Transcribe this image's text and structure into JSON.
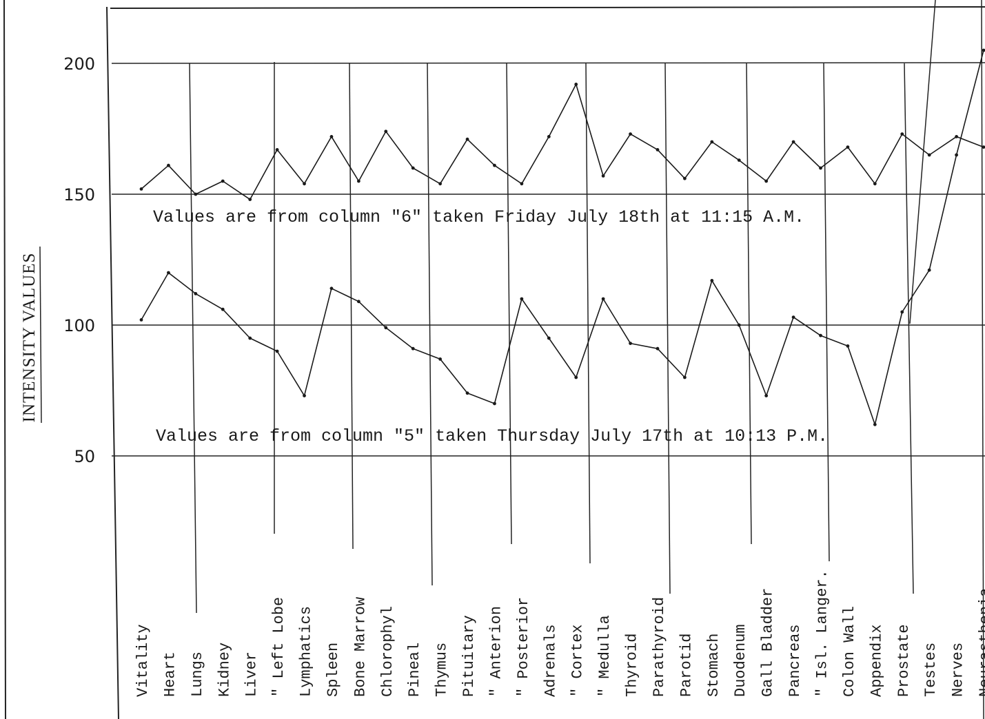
{
  "chart_data": {
    "type": "line",
    "ylabel": "INTENSITY VALUES",
    "y_ticks": [
      "200",
      "150",
      "100",
      "50"
    ],
    "ylim": [
      30,
      220
    ],
    "grid": "horizontal lines at 50, 100, 150, 200",
    "categories": [
      "Vitality",
      "Heart",
      "Lungs",
      "Kidney",
      "Liver",
      "\" Left Lobe",
      "Lymphatics",
      "Spleen",
      "Bone Marrow",
      "Chlorophyl",
      "Pineal",
      "Thymus",
      "Pituitary",
      "\" Anterion",
      "\" Posterior",
      "Adrenals",
      "\" Cortex",
      "\" Medulla",
      "Thyroid",
      "Parathyroid",
      "Parotid",
      "Stomach",
      "Duodenum",
      "Gall Bladder",
      "Pancreas",
      "\" Isl. Langer.",
      "Colon Wall",
      "Appendix",
      "Prostate",
      "Testes",
      "Nerves",
      "Neurasthenia"
    ],
    "series": [
      {
        "values": [
          152,
          161,
          150,
          155,
          148,
          167,
          154,
          172,
          155,
          174,
          160,
          154,
          171,
          161,
          154,
          172,
          192,
          157,
          173,
          167,
          156,
          170,
          163,
          155,
          170,
          160,
          168,
          154,
          173,
          165,
          172,
          168
        ]
      },
      {
        "values": [
          102,
          120,
          112,
          106,
          95,
          90,
          73,
          114,
          109,
          99,
          91,
          87,
          74,
          70,
          110,
          95,
          80,
          110,
          93,
          91,
          80,
          117,
          100,
          73,
          103,
          96,
          92,
          62,
          105,
          121,
          165,
          205
        ]
      }
    ],
    "annotations": [
      "Values are from column \"6\" taken Friday July 18th at 11:15 A.M.",
      "Values are from column \"5\" taken Thursday July 17th at 10:13 P.M."
    ]
  }
}
